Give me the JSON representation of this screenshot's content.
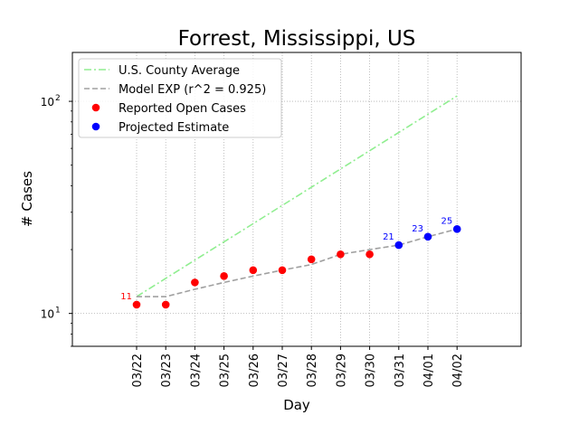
{
  "chart_data": {
    "type": "line",
    "title": "Forrest, Mississippi, US",
    "xlabel": "Day",
    "ylabel": "# Cases",
    "yscale": "log",
    "ylim": [
      7,
      170
    ],
    "grid": "on",
    "legend_position": "top-left",
    "categories": [
      "03/22",
      "03/23",
      "03/24",
      "03/25",
      "03/26",
      "03/27",
      "03/28",
      "03/29",
      "03/30",
      "03/31",
      "04/01",
      "04/02"
    ],
    "y_ticks": [
      {
        "value": 10,
        "label": "10",
        "exp": "1"
      },
      {
        "value": 100,
        "label": "10",
        "exp": "2"
      }
    ],
    "series": [
      {
        "name": "U.S. County Average",
        "style": "dashdot",
        "color": "#90ee90",
        "points": [
          {
            "x": "03/22",
            "y": 12
          },
          {
            "x": "04/02",
            "y": 106
          }
        ]
      },
      {
        "name": "Model EXP (r^2 = 0.925)",
        "style": "dashed",
        "color": "#a0a0a0",
        "points": [
          {
            "x": "03/22",
            "y": 12
          },
          {
            "x": "03/23",
            "y": 12
          },
          {
            "x": "03/24",
            "y": 13
          },
          {
            "x": "03/25",
            "y": 14
          },
          {
            "x": "03/26",
            "y": 15
          },
          {
            "x": "03/27",
            "y": 16
          },
          {
            "x": "03/28",
            "y": 17
          },
          {
            "x": "03/29",
            "y": 19
          },
          {
            "x": "03/30",
            "y": 20
          },
          {
            "x": "03/31",
            "y": 21
          },
          {
            "x": "04/01",
            "y": 23
          },
          {
            "x": "04/02",
            "y": 25
          }
        ]
      },
      {
        "name": "Reported Open Cases",
        "style": "markers",
        "color": "#ff0000",
        "points": [
          {
            "x": "03/22",
            "y": 11,
            "label": "11"
          },
          {
            "x": "03/23",
            "y": 11
          },
          {
            "x": "03/24",
            "y": 14
          },
          {
            "x": "03/25",
            "y": 15
          },
          {
            "x": "03/26",
            "y": 16
          },
          {
            "x": "03/27",
            "y": 16
          },
          {
            "x": "03/28",
            "y": 18
          },
          {
            "x": "03/29",
            "y": 19
          },
          {
            "x": "03/30",
            "y": 19
          }
        ]
      },
      {
        "name": "Projected Estimate",
        "style": "markers",
        "color": "#0000ff",
        "points": [
          {
            "x": "03/31",
            "y": 21,
            "label": "21"
          },
          {
            "x": "04/01",
            "y": 23,
            "label": "23"
          },
          {
            "x": "04/02",
            "y": 25,
            "label": "25"
          }
        ]
      }
    ]
  }
}
